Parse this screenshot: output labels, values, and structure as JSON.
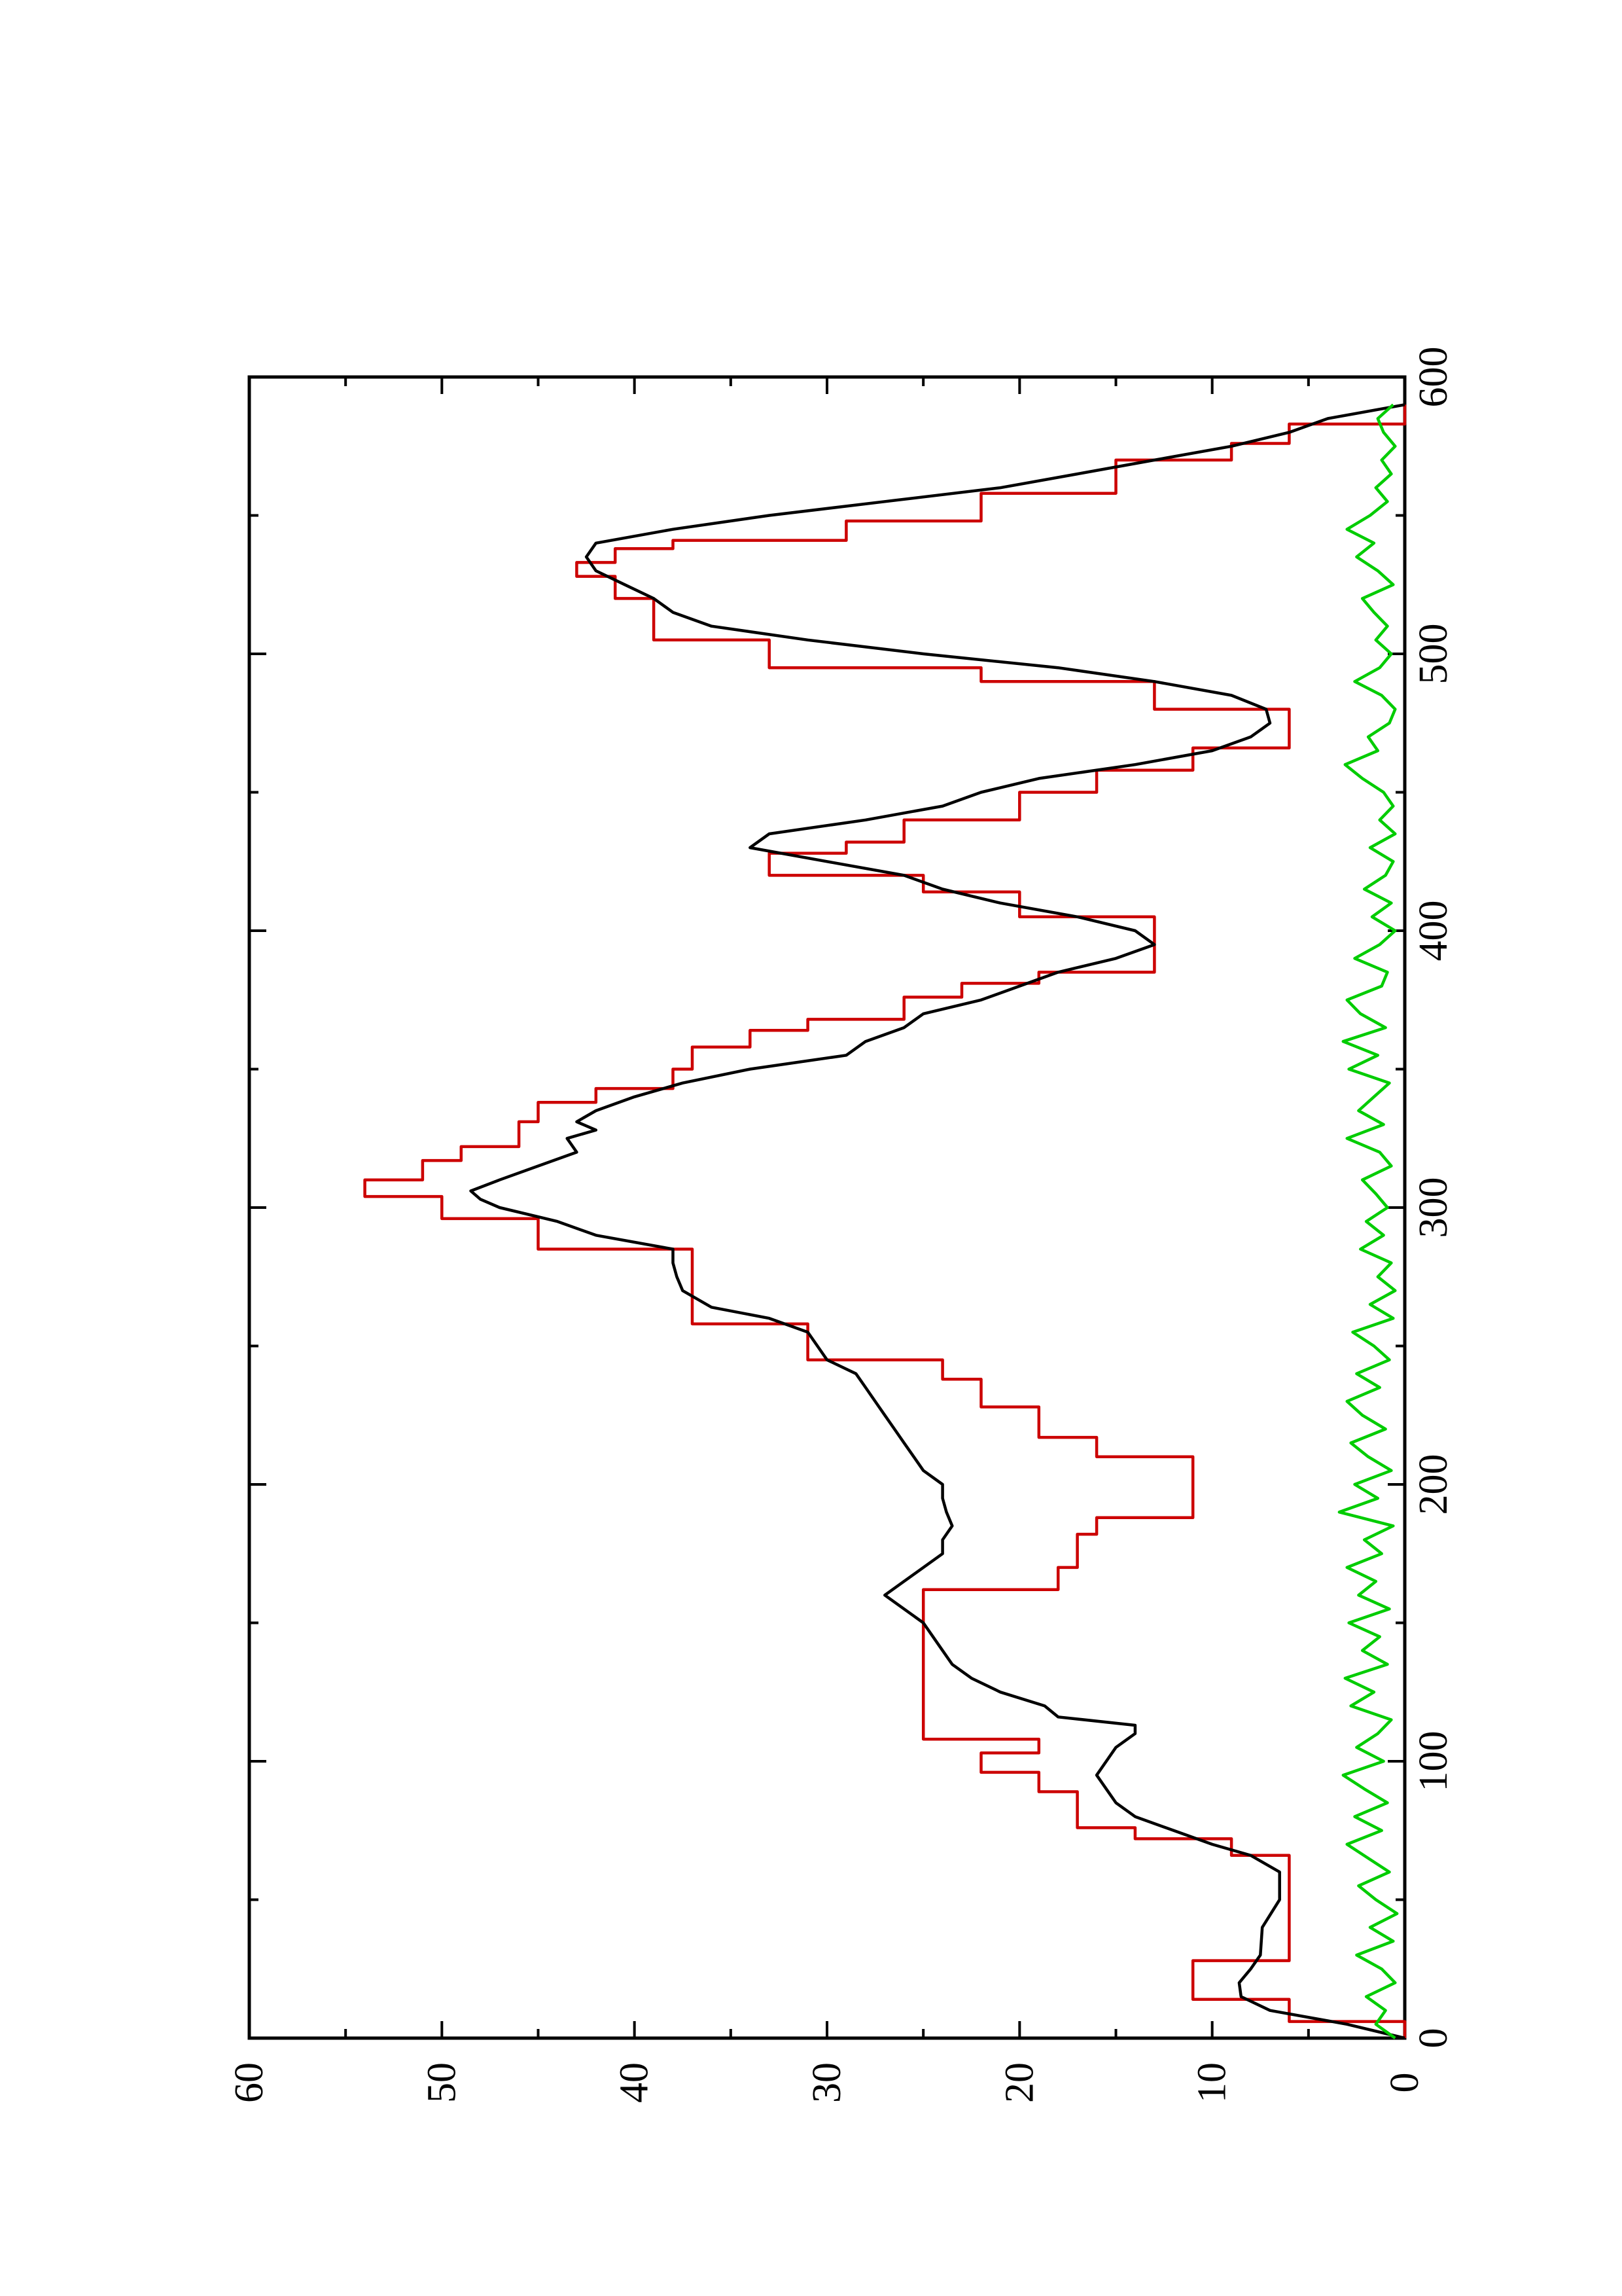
{
  "chart_data": {
    "type": "line",
    "orientation": "rotated 90 degrees counter-clockwise (x axis runs along the right edge, y axis along the bottom)",
    "title": "",
    "xlabel": "",
    "ylabel": "",
    "xlim": [
      0,
      600
    ],
    "ylim": [
      0,
      60
    ],
    "x_ticks": [
      "0",
      "100",
      "200",
      "300",
      "400",
      "500",
      "600"
    ],
    "y_ticks": [
      "0",
      "10",
      "20",
      "30",
      "40",
      "50",
      "60"
    ],
    "grid": false,
    "legend": "none",
    "series": [
      {
        "color": "#cc0000",
        "style": "step",
        "x": [
          0,
          6,
          6,
          14,
          14,
          28,
          28,
          66,
          66,
          72,
          72,
          76,
          76,
          89,
          89,
          96,
          96,
          103,
          103,
          108,
          108,
          116,
          116,
          162,
          162,
          170,
          170,
          182,
          182,
          188,
          188,
          210,
          210,
          217,
          217,
          228,
          228,
          238,
          238,
          245,
          245,
          258,
          258,
          264,
          264,
          285,
          285,
          296,
          296,
          304,
          304,
          310,
          310,
          317,
          317,
          322,
          322,
          331,
          331,
          338,
          338,
          343,
          343,
          350,
          350,
          358,
          358,
          364,
          364,
          368,
          368,
          376,
          376,
          381,
          381,
          385,
          385,
          395,
          395,
          405,
          405,
          414,
          414,
          420,
          420,
          428,
          428,
          432,
          432,
          440,
          440,
          450,
          450,
          458,
          458,
          466,
          466,
          480,
          480,
          490,
          490,
          495,
          495,
          505,
          505,
          520,
          520,
          528,
          528,
          533,
          533,
          538,
          538,
          541,
          541,
          548,
          548,
          558,
          558,
          570,
          570,
          576,
          576,
          583,
          583,
          590
        ],
        "y": [
          0,
          0,
          6,
          6,
          11,
          11,
          6,
          6,
          9,
          9,
          14,
          14,
          17,
          17,
          19,
          19,
          22,
          22,
          19,
          19,
          25,
          25,
          25,
          25,
          18,
          18,
          17,
          17,
          16,
          16,
          11,
          11,
          16,
          16,
          19,
          19,
          22,
          22,
          24,
          24,
          31,
          31,
          37,
          37,
          37,
          37,
          45,
          45,
          50,
          50,
          54,
          54,
          51,
          51,
          49,
          49,
          46,
          46,
          45,
          45,
          42,
          42,
          38,
          38,
          37,
          37,
          34,
          34,
          31,
          31,
          26,
          26,
          23,
          23,
          19,
          19,
          13,
          13,
          13,
          13,
          20,
          20,
          25,
          25,
          33,
          33,
          29,
          29,
          26,
          26,
          20,
          20,
          16,
          16,
          11,
          11,
          6,
          6,
          13,
          13,
          22,
          22,
          33,
          33,
          39,
          39,
          41,
          41,
          43,
          43,
          41,
          41,
          38,
          38,
          29,
          29,
          22,
          22,
          15,
          15,
          9,
          9,
          6,
          6,
          0,
          0
        ]
      },
      {
        "color": "#000000",
        "style": "line",
        "x": [
          0,
          5,
          10,
          15,
          20,
          25,
          30,
          40,
          50,
          60,
          66,
          70,
          75,
          80,
          85,
          90,
          95,
          100,
          105,
          110,
          113,
          116,
          120,
          125,
          130,
          135,
          140,
          145,
          150,
          155,
          160,
          165,
          170,
          175,
          180,
          185,
          190,
          195,
          200,
          205,
          210,
          215,
          220,
          225,
          230,
          235,
          240,
          245,
          250,
          255,
          260,
          264,
          270,
          275,
          280,
          285,
          290,
          295,
          300,
          303,
          306,
          310,
          315,
          320,
          325,
          328,
          331,
          335,
          340,
          345,
          350,
          355,
          360,
          365,
          370,
          375,
          380,
          385,
          390,
          395,
          400,
          405,
          410,
          415,
          420,
          425,
          430,
          435,
          440,
          445,
          450,
          455,
          460,
          465,
          470,
          475,
          480,
          485,
          490,
          495,
          500,
          505,
          510,
          515,
          520,
          525,
          530,
          535,
          540,
          545,
          550,
          555,
          560,
          565,
          570,
          575,
          580,
          585,
          590
        ],
        "y": [
          0,
          3,
          7,
          8.5,
          8.6,
          8,
          7.5,
          7.4,
          6.5,
          6.5,
          8,
          10,
          12,
          14,
          15,
          15.5,
          16,
          15.5,
          15,
          14,
          14,
          18,
          18.7,
          21,
          22.5,
          23.5,
          24,
          24.5,
          25,
          26,
          27,
          26,
          25,
          24,
          24,
          23.5,
          23.8,
          24,
          24,
          25,
          25.5,
          26,
          26.5,
          27,
          27.5,
          28,
          28.5,
          30,
          30.5,
          31,
          33,
          36,
          37.5,
          37.8,
          38,
          38,
          42,
          44,
          47,
          48,
          48.5,
          47,
          45,
          43,
          43.5,
          42,
          43,
          42,
          40,
          37.5,
          34,
          29,
          28,
          26,
          25,
          22,
          20,
          18,
          15,
          13,
          14,
          17,
          21,
          24,
          26,
          30,
          34,
          33,
          28,
          24,
          22,
          19,
          14,
          10,
          8,
          7,
          7.2,
          9,
          13,
          18,
          25,
          31,
          36,
          38,
          39,
          40.5,
          42,
          42.5,
          42,
          38,
          33,
          27,
          21,
          17,
          13,
          9,
          6,
          4,
          0
        ]
      },
      {
        "color": "#00cc00",
        "style": "noise",
        "x": [
          0,
          5,
          10,
          15,
          20,
          25,
          30,
          35,
          40,
          45,
          50,
          55,
          60,
          65,
          70,
          75,
          80,
          85,
          90,
          95,
          100,
          105,
          110,
          115,
          120,
          125,
          130,
          135,
          140,
          145,
          150,
          155,
          160,
          165,
          170,
          175,
          180,
          185,
          190,
          195,
          200,
          205,
          210,
          215,
          220,
          225,
          230,
          235,
          240,
          245,
          250,
          255,
          260,
          265,
          270,
          275,
          280,
          285,
          290,
          295,
          300,
          305,
          310,
          315,
          320,
          325,
          330,
          335,
          340,
          345,
          350,
          355,
          360,
          365,
          370,
          375,
          380,
          385,
          390,
          395,
          400,
          405,
          410,
          415,
          420,
          425,
          430,
          435,
          440,
          445,
          450,
          455,
          460,
          465,
          470,
          475,
          480,
          485,
          490,
          495,
          500,
          505,
          510,
          515,
          520,
          525,
          530,
          535,
          540,
          545,
          550,
          555,
          560,
          565,
          570,
          575,
          580,
          585,
          590
        ],
        "y": [
          0.5,
          1.5,
          1,
          2,
          0.5,
          1.2,
          2.5,
          0.6,
          1.8,
          0.4,
          1.5,
          2.4,
          0.8,
          1.9,
          3,
          1.2,
          2.6,
          0.9,
          2.1,
          3.2,
          1.1,
          2.5,
          1.4,
          0.7,
          2.8,
          1.6,
          3.1,
          0.9,
          2.2,
          1.3,
          2.9,
          0.8,
          2.4,
          1.5,
          3,
          1.2,
          2.1,
          0.6,
          3.4,
          1.4,
          2.6,
          0.7,
          1.9,
          2.8,
          1,
          2.2,
          3,
          1.3,
          2.5,
          0.8,
          1.6,
          2.7,
          0.6,
          1.8,
          0.5,
          1.4,
          0.7,
          2.3,
          1.1,
          2,
          0.9,
          1.5,
          2.2,
          0.7,
          1.3,
          3,
          1.1,
          2.4,
          1.6,
          0.8,
          2.9,
          1.4,
          3.2,
          1,
          2.3,
          3,
          1.2,
          0.9,
          2.6,
          1.3,
          0.5,
          1.7,
          0.7,
          2.1,
          1,
          0.6,
          1.8,
          0.5,
          1.3,
          0.6,
          1.1,
          2.2,
          3.1,
          1.4,
          1.9,
          0.8,
          0.5,
          1.2,
          2.6,
          1.3,
          0.7,
          1.5,
          0.9,
          1.6,
          2.2,
          0.6,
          1.4,
          2.5,
          1.6,
          3,
          1.8,
          0.9,
          1.5,
          0.7,
          1.2,
          0.5,
          1.1,
          1.4,
          0.6
        ]
      }
    ]
  }
}
